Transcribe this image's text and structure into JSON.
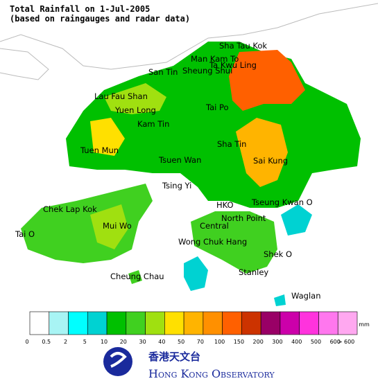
{
  "header": {
    "title": "Total Rainfall on 1-Jul-2005",
    "subtitle": "(based on raingauges and radar data)"
  },
  "places": [
    "Sha Tau Kok",
    "Man Kam To",
    "Ta Kwu Ling",
    "San Tin",
    "Sheung Shui",
    "Lau Fau Shan",
    "Yuen Long",
    "Tai Po",
    "Kam Tin",
    "Tuen Mun",
    "Sha Tin",
    "Tsuen Wan",
    "Sai Kung",
    "Tsing Yi",
    "Chek Lap Kok",
    "HKO",
    "Tseung Kwan O",
    "North Point",
    "Central",
    "Mui Wo",
    "Tai O",
    "Wong Chuk Hang",
    "Shek O",
    "Stanley",
    "Cheung Chau",
    "Waglan"
  ],
  "legend": {
    "unit": "mm",
    "colors": [
      "#ffffff",
      "#a8f4f4",
      "#00ffff",
      "#00d2d2",
      "#00c000",
      "#40d020",
      "#a0e010",
      "#ffe000",
      "#ffb400",
      "#ff9000",
      "#ff6000",
      "#cc3300",
      "#990066",
      "#cc00aa",
      "#ff33dd",
      "#ff77ee",
      "#ffa8f0",
      "#ffddff"
    ],
    "labels": [
      "0",
      "0.5",
      "2",
      "5",
      "10",
      "20",
      "30",
      "40",
      "50",
      "70",
      "100",
      "150",
      "200",
      "300",
      "400",
      "500",
      "600",
      "> 600"
    ]
  },
  "logo": {
    "chinese": "香港天文台",
    "english": "Hong Kong Observatory"
  }
}
